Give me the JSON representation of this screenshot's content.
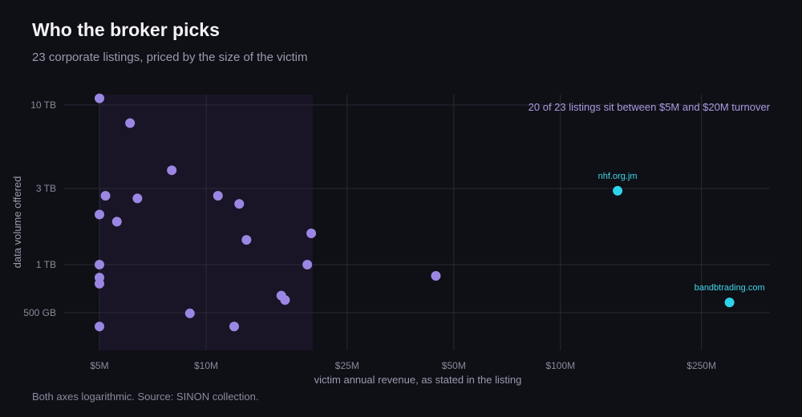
{
  "title": "Who the broker picks",
  "subtitle": "23 corporate listings, priced by the size of the victim",
  "footnote": "Both axes logarithmic. Source: SINON collection.",
  "colors": {
    "background": "#0f0f16",
    "point": "#9b87e3",
    "highlight": "#2ed3ea",
    "band": "#191426",
    "grid": "#2a2a36"
  },
  "chart_data": {
    "type": "scatter",
    "x_scale": "log",
    "y_scale": "log",
    "xlabel": "victim annual revenue, as stated in the listing",
    "ylabel": "data volume offered",
    "x_ticks": [
      {
        "value": 5,
        "label": "$5M"
      },
      {
        "value": 10,
        "label": "$10M"
      },
      {
        "value": 25,
        "label": "$25M"
      },
      {
        "value": 50,
        "label": "$50M"
      },
      {
        "value": 100,
        "label": "$100M"
      },
      {
        "value": 250,
        "label": "$250M"
      }
    ],
    "y_ticks": [
      {
        "value": 0.5,
        "label": "500 GB"
      },
      {
        "value": 1,
        "label": "1 TB"
      },
      {
        "value": 3,
        "label": "3 TB"
      },
      {
        "value": 10,
        "label": "10 TB"
      }
    ],
    "highlight_band": {
      "x_from": 5,
      "x_to": 20,
      "label": "20 of 23 listings sit between $5M and $20M turnover"
    },
    "points": [
      {
        "x": 5.0,
        "y": 11.0
      },
      {
        "x": 6.1,
        "y": 7.7
      },
      {
        "x": 8.0,
        "y": 3.9
      },
      {
        "x": 5.2,
        "y": 2.7
      },
      {
        "x": 6.4,
        "y": 2.6
      },
      {
        "x": 10.8,
        "y": 2.7
      },
      {
        "x": 12.4,
        "y": 2.4
      },
      {
        "x": 5.0,
        "y": 2.06
      },
      {
        "x": 5.6,
        "y": 1.86
      },
      {
        "x": 13.0,
        "y": 1.43
      },
      {
        "x": 19.8,
        "y": 1.57
      },
      {
        "x": 5.0,
        "y": 1.0
      },
      {
        "x": 19.3,
        "y": 1.0
      },
      {
        "x": 44.5,
        "y": 0.85
      },
      {
        "x": 5.0,
        "y": 0.83
      },
      {
        "x": 5.0,
        "y": 0.76
      },
      {
        "x": 16.3,
        "y": 0.64
      },
      {
        "x": 16.7,
        "y": 0.6
      },
      {
        "x": 9.0,
        "y": 0.495
      },
      {
        "x": 12.0,
        "y": 0.41
      },
      {
        "x": 5.0,
        "y": 0.41
      },
      {
        "x": 145,
        "y": 2.9,
        "label": "nhf.org.jm",
        "highlight": true
      },
      {
        "x": 300,
        "y": 0.58,
        "label": "bandbtrading.com",
        "highlight": true
      }
    ]
  }
}
